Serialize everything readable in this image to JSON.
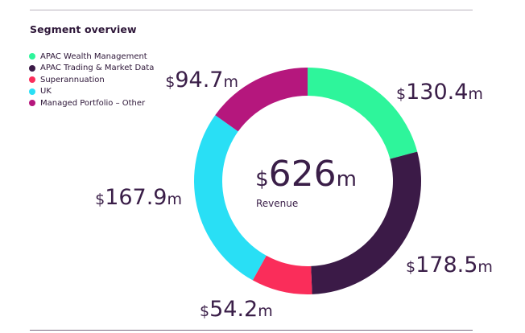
{
  "title": "Segment overview",
  "colors": {
    "text": "#3a1e48",
    "rule": "#b9b3bd"
  },
  "chart_data": {
    "type": "pie",
    "variant": "donut",
    "total": {
      "prefix": "$",
      "number": "626",
      "suffix": "m",
      "label": "Revenue"
    },
    "slices": [
      {
        "name": "APAC Wealth Management",
        "value": 130.4,
        "number": "130.4",
        "color": "#2ef59b"
      },
      {
        "name": "APAC Trading & Market Data",
        "value": 178.5,
        "number": "178.5",
        "color": "#3b1a47"
      },
      {
        "name": "Superannuation",
        "value": 54.2,
        "number": "54.2",
        "color": "#fa2d5a"
      },
      {
        "name": "UK",
        "value": 167.9,
        "number": "167.9",
        "color": "#29dff5"
      },
      {
        "name": "Managed Portfolio – Other",
        "value": 94.7,
        "number": "94.7",
        "color": "#b5177d"
      }
    ],
    "value_prefix": "$",
    "value_suffix": "m",
    "legend_position": "top-left"
  }
}
